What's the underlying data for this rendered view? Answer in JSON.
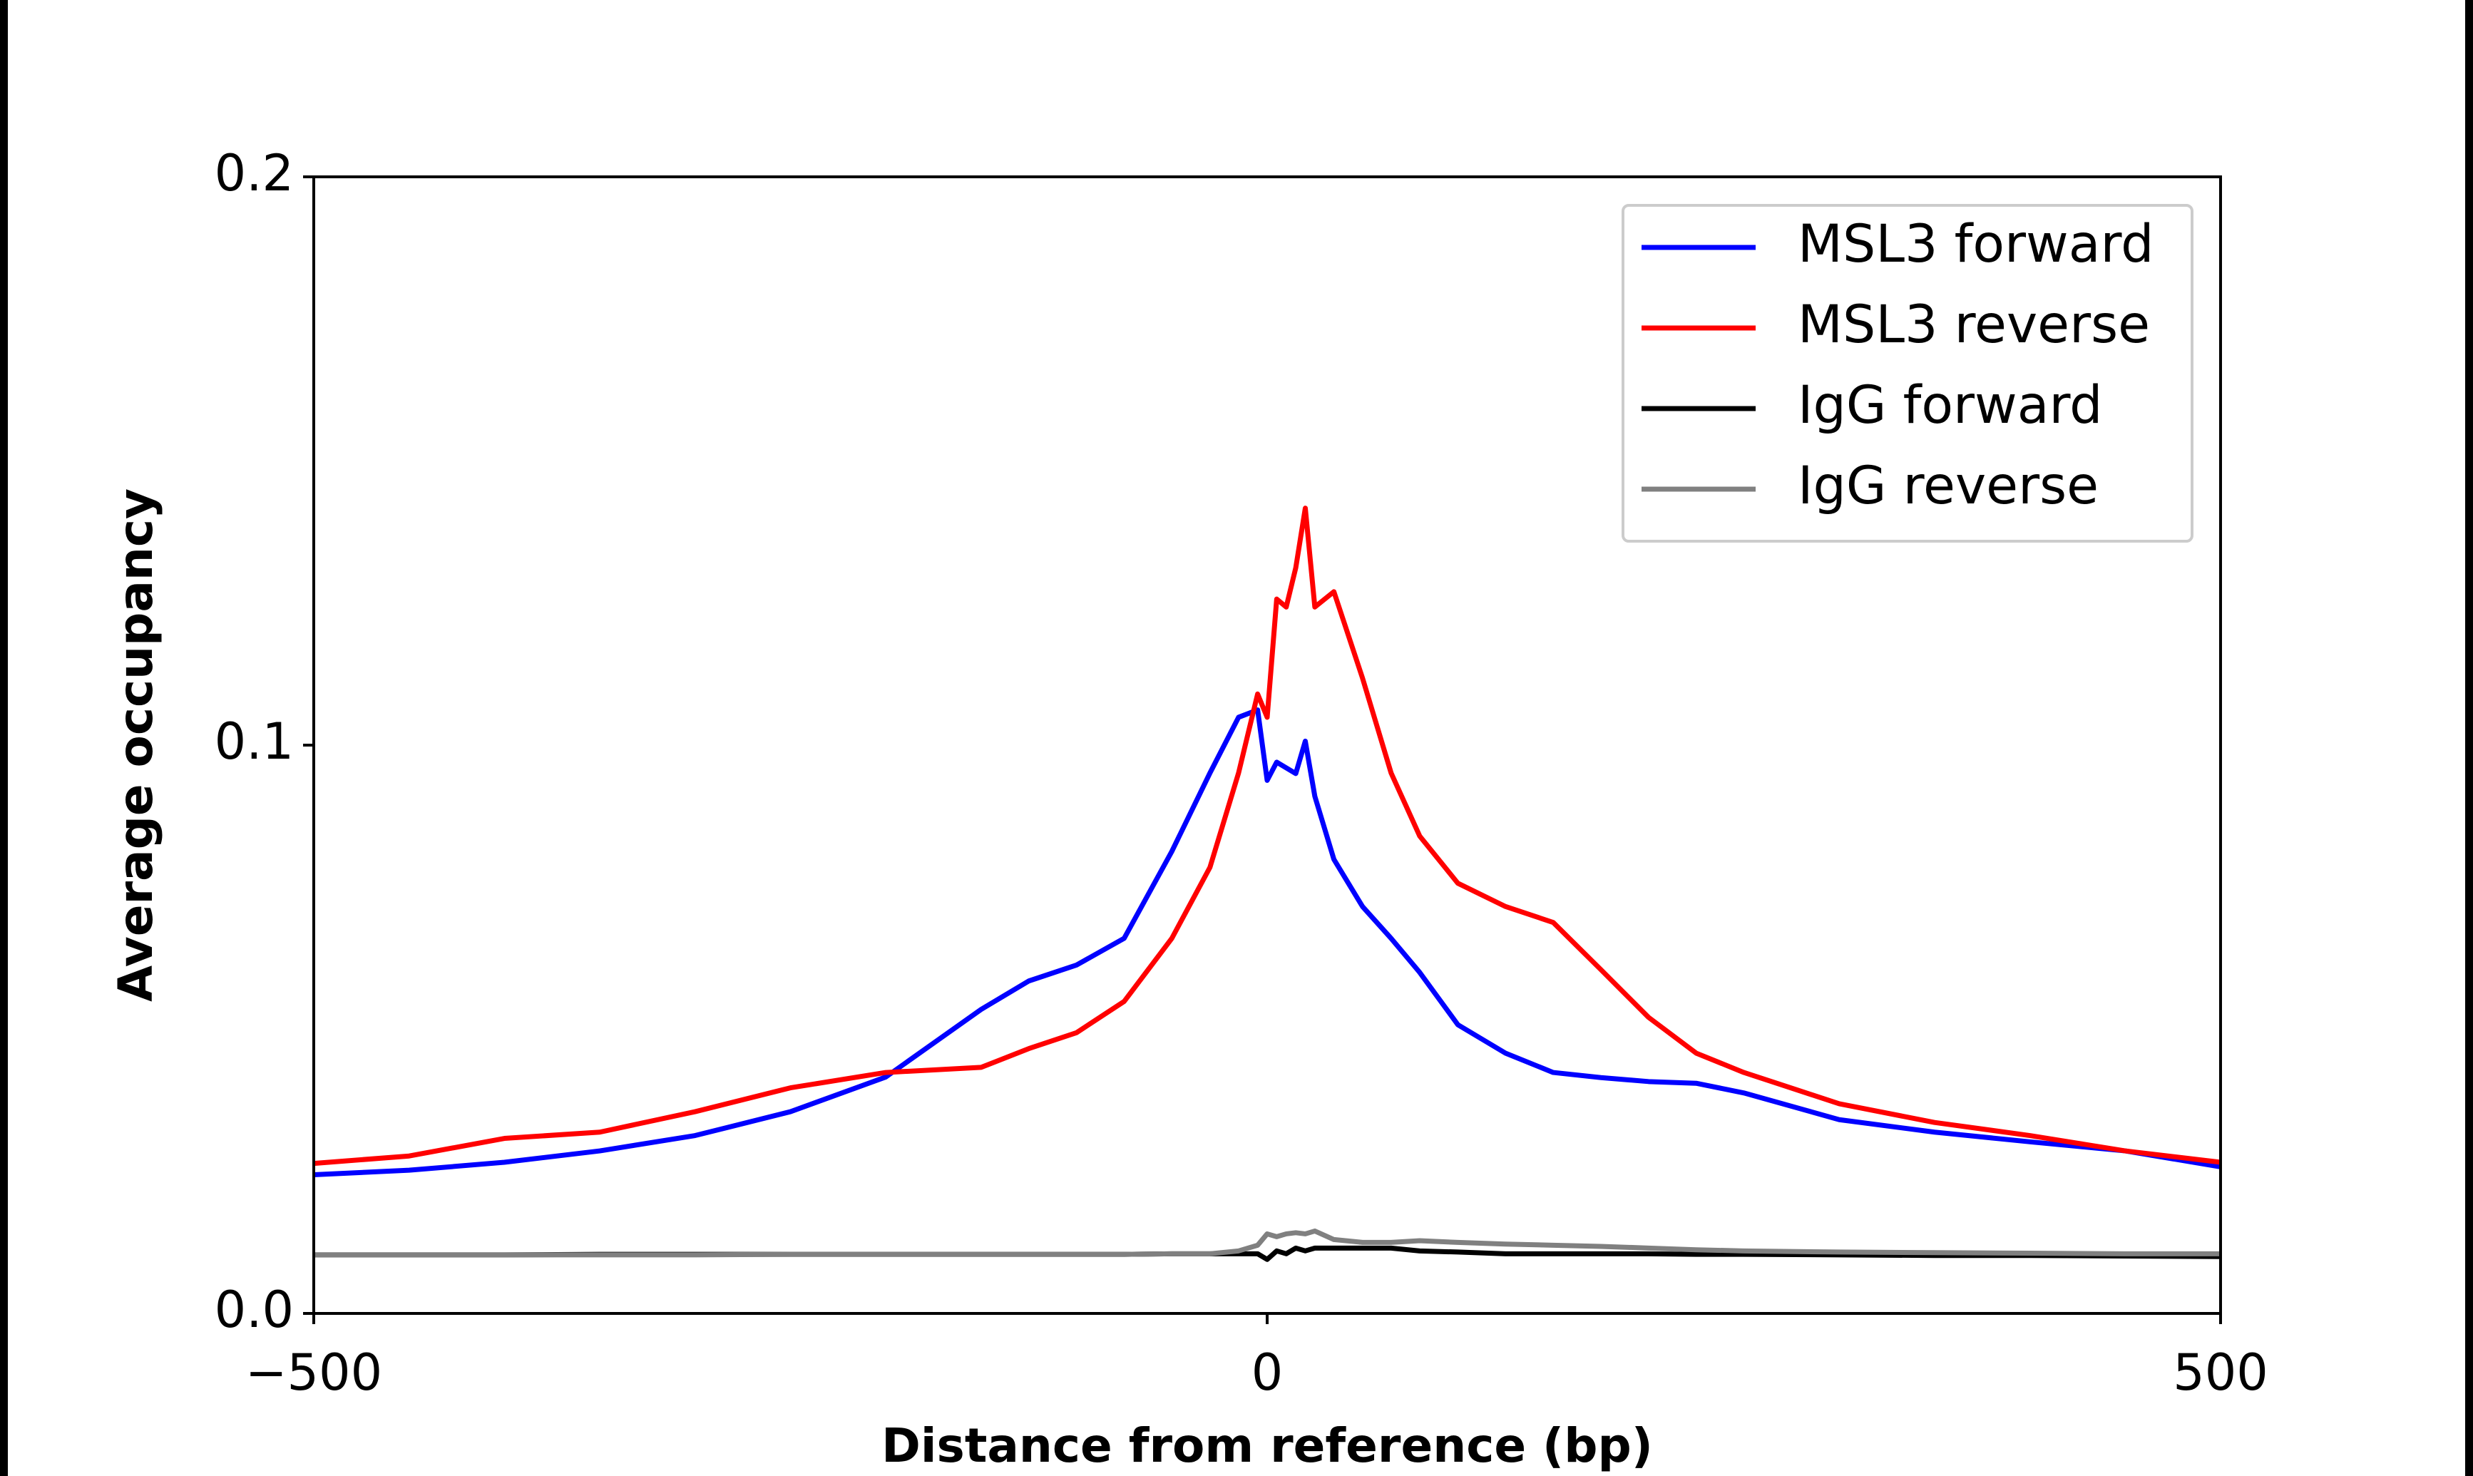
{
  "chart_data": {
    "type": "line",
    "xlabel": "Distance from reference (bp)",
    "ylabel": "Average occupancy",
    "x": [
      -500,
      -450,
      -400,
      -350,
      -300,
      -250,
      -200,
      -150,
      -125,
      -100,
      -75,
      -50,
      -30,
      -15,
      -5,
      0,
      5,
      10,
      15,
      20,
      25,
      35,
      50,
      65,
      80,
      100,
      125,
      150,
      175,
      200,
      225,
      250,
      300,
      350,
      400,
      450,
      500
    ],
    "series": [
      {
        "name": "MSL3 forward",
        "color": "#0000ff",
        "values": [
          0.0244,
          0.0252,
          0.0266,
          0.0286,
          0.0313,
          0.0355,
          0.0416,
          0.0535,
          0.0585,
          0.0613,
          0.066,
          0.0813,
          0.0951,
          0.1049,
          0.1062,
          0.0938,
          0.097,
          0.096,
          0.095,
          0.1007,
          0.091,
          0.0799,
          0.0716,
          0.066,
          0.06,
          0.0508,
          0.0458,
          0.0424,
          0.0415,
          0.0408,
          0.0405,
          0.0388,
          0.0341,
          0.0319,
          0.0302,
          0.0286,
          0.0258
        ]
      },
      {
        "name": "MSL3 reverse",
        "color": "#ff0000",
        "values": [
          0.0264,
          0.0277,
          0.0308,
          0.0319,
          0.0355,
          0.0397,
          0.0424,
          0.0433,
          0.0466,
          0.0494,
          0.0549,
          0.066,
          0.0785,
          0.0951,
          0.109,
          0.1049,
          0.1257,
          0.1243,
          0.1312,
          0.1417,
          0.1243,
          0.127,
          0.1118,
          0.0951,
          0.084,
          0.0757,
          0.0716,
          0.0688,
          0.0605,
          0.0521,
          0.0458,
          0.0424,
          0.0369,
          0.0336,
          0.0313,
          0.0286,
          0.0266
        ]
      },
      {
        "name": "IgG forward",
        "color": "#000000",
        "values": [
          0.0103,
          0.0103,
          0.0103,
          0.0104,
          0.0104,
          0.0104,
          0.0104,
          0.0104,
          0.0104,
          0.0104,
          0.0104,
          0.0105,
          0.0105,
          0.0105,
          0.0105,
          0.0095,
          0.011,
          0.0105,
          0.0115,
          0.011,
          0.0115,
          0.0115,
          0.0115,
          0.0115,
          0.011,
          0.0108,
          0.0105,
          0.0105,
          0.0105,
          0.0105,
          0.0104,
          0.0104,
          0.0103,
          0.0102,
          0.0102,
          0.0101,
          0.01
        ]
      },
      {
        "name": "IgG reverse",
        "color": "#808080",
        "values": [
          0.0103,
          0.0103,
          0.0103,
          0.0103,
          0.0103,
          0.0104,
          0.0104,
          0.0104,
          0.0104,
          0.0104,
          0.0104,
          0.0105,
          0.0105,
          0.011,
          0.012,
          0.014,
          0.0135,
          0.014,
          0.0142,
          0.014,
          0.0145,
          0.013,
          0.0125,
          0.0125,
          0.0128,
          0.0125,
          0.0122,
          0.012,
          0.0118,
          0.0115,
          0.0112,
          0.011,
          0.0108,
          0.0107,
          0.0106,
          0.0105,
          0.0105
        ]
      }
    ],
    "xlim": [
      -500,
      500
    ],
    "xticks": [
      {
        "value": -500,
        "label": "−500"
      },
      0,
      500
    ],
    "ylim": [
      0,
      0.2
    ],
    "yticks": [
      {
        "value": 0,
        "label": "0.0"
      },
      0.1,
      0.2
    ],
    "legend": "upper right"
  }
}
